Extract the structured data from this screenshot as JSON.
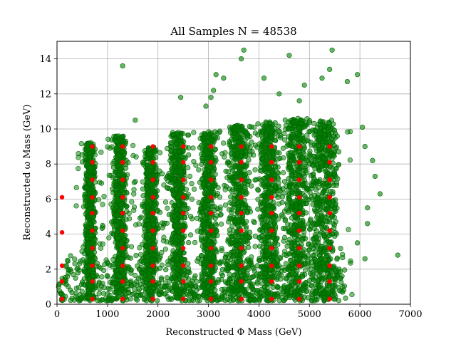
{
  "chart_data": {
    "type": "scatter",
    "title": "All Samples N = 48538",
    "xlabel": "Reconstructed Φ Mass (GeV)",
    "ylabel": "Reconstructed ω Mass (GeV)",
    "xlim": [
      0,
      7000
    ],
    "ylim": [
      0,
      15
    ],
    "xticks": [
      0,
      1000,
      2000,
      3000,
      4000,
      5000,
      6000,
      7000
    ],
    "yticks": [
      0,
      2,
      4,
      6,
      8,
      10,
      12,
      14
    ],
    "grid": true,
    "n_samples": 48538,
    "series": [
      {
        "kind": "reconstructed",
        "color": "#008000",
        "alpha": 0.55,
        "columns": [
          {
            "phi": 700,
            "xmin": 500,
            "xmax": 800,
            "ymax": 9.2
          },
          {
            "phi": 1300,
            "xmin": 1050,
            "xmax": 1450,
            "ymax": 9.6
          },
          {
            "phi": 1900,
            "xmin": 1650,
            "xmax": 2050,
            "ymax": 9.0
          },
          {
            "phi": 2500,
            "xmin": 2150,
            "xmax": 2650,
            "ymax": 9.8
          },
          {
            "phi": 3050,
            "xmin": 2750,
            "xmax": 3250,
            "ymax": 9.9
          },
          {
            "phi": 3650,
            "xmin": 3300,
            "xmax": 3900,
            "ymax": 10.2
          },
          {
            "phi": 4250,
            "xmin": 3900,
            "xmax": 4500,
            "ymax": 10.4
          },
          {
            "phi": 4800,
            "xmin": 4400,
            "xmax": 5100,
            "ymax": 10.6
          },
          {
            "phi": 5400,
            "xmin": 4900,
            "xmax": 5700,
            "ymax": 10.5
          }
        ],
        "outliers": [
          [
            1300,
            13.6
          ],
          [
            1550,
            10.5
          ],
          [
            2450,
            11.8
          ],
          [
            2950,
            11.3
          ],
          [
            3050,
            11.8
          ],
          [
            3100,
            12.2
          ],
          [
            3150,
            13.1
          ],
          [
            3300,
            12.9
          ],
          [
            3650,
            14.0
          ],
          [
            3700,
            14.5
          ],
          [
            4100,
            12.9
          ],
          [
            4400,
            12.0
          ],
          [
            4600,
            14.2
          ],
          [
            4800,
            11.6
          ],
          [
            4900,
            12.5
          ],
          [
            5250,
            12.9
          ],
          [
            5400,
            13.4
          ],
          [
            5450,
            14.5
          ],
          [
            5750,
            12.7
          ],
          [
            5950,
            13.1
          ],
          [
            6050,
            10.1
          ],
          [
            6100,
            9.0
          ],
          [
            6250,
            8.2
          ],
          [
            6300,
            7.3
          ],
          [
            6400,
            6.3
          ],
          [
            6150,
            5.5
          ],
          [
            6150,
            4.6
          ],
          [
            6750,
            2.8
          ],
          [
            6100,
            2.6
          ],
          [
            5950,
            3.5
          ]
        ]
      },
      {
        "kind": "true",
        "color": "#ff0000",
        "phi_values": [
          100,
          700,
          1300,
          1900,
          2500,
          3050,
          3650,
          4250,
          4800,
          5400
        ],
        "omega_values": [
          0.3,
          1.3,
          2.2,
          3.2,
          4.2,
          5.2,
          6.1,
          7.1,
          8.1,
          9.0
        ]
      }
    ]
  }
}
